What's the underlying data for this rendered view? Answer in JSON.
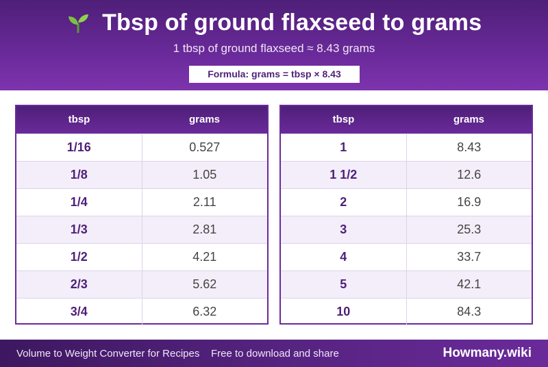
{
  "header": {
    "icon": "seedling-icon",
    "title": "Tbsp of ground flaxseed to grams",
    "subtitle": "1 tbsp of ground flaxseed ≈ 8.43 grams",
    "formula": "Formula: grams = tbsp × 8.43"
  },
  "tables": [
    {
      "col1": "tbsp",
      "col2": "grams",
      "rows": [
        {
          "tbsp": "1/16",
          "grams": "0.527"
        },
        {
          "tbsp": "1/8",
          "grams": "1.05"
        },
        {
          "tbsp": "1/4",
          "grams": "2.11"
        },
        {
          "tbsp": "1/3",
          "grams": "2.81"
        },
        {
          "tbsp": "1/2",
          "grams": "4.21"
        },
        {
          "tbsp": "2/3",
          "grams": "5.62"
        },
        {
          "tbsp": "3/4",
          "grams": "6.32"
        }
      ]
    },
    {
      "col1": "tbsp",
      "col2": "grams",
      "rows": [
        {
          "tbsp": "1",
          "grams": "8.43"
        },
        {
          "tbsp": "1 1/2",
          "grams": "12.6"
        },
        {
          "tbsp": "2",
          "grams": "16.9"
        },
        {
          "tbsp": "3",
          "grams": "25.3"
        },
        {
          "tbsp": "4",
          "grams": "33.7"
        },
        {
          "tbsp": "5",
          "grams": "42.1"
        },
        {
          "tbsp": "10",
          "grams": "84.3"
        }
      ]
    }
  ],
  "footer": {
    "left": "Volume to Weight Converter for Recipes",
    "middle": "Free to download and share",
    "brand": "Howmany.wiki"
  },
  "colors": {
    "accent": "#6a2a9a",
    "dark_accent": "#4e1f78",
    "alt_row": "#f3eef9"
  }
}
